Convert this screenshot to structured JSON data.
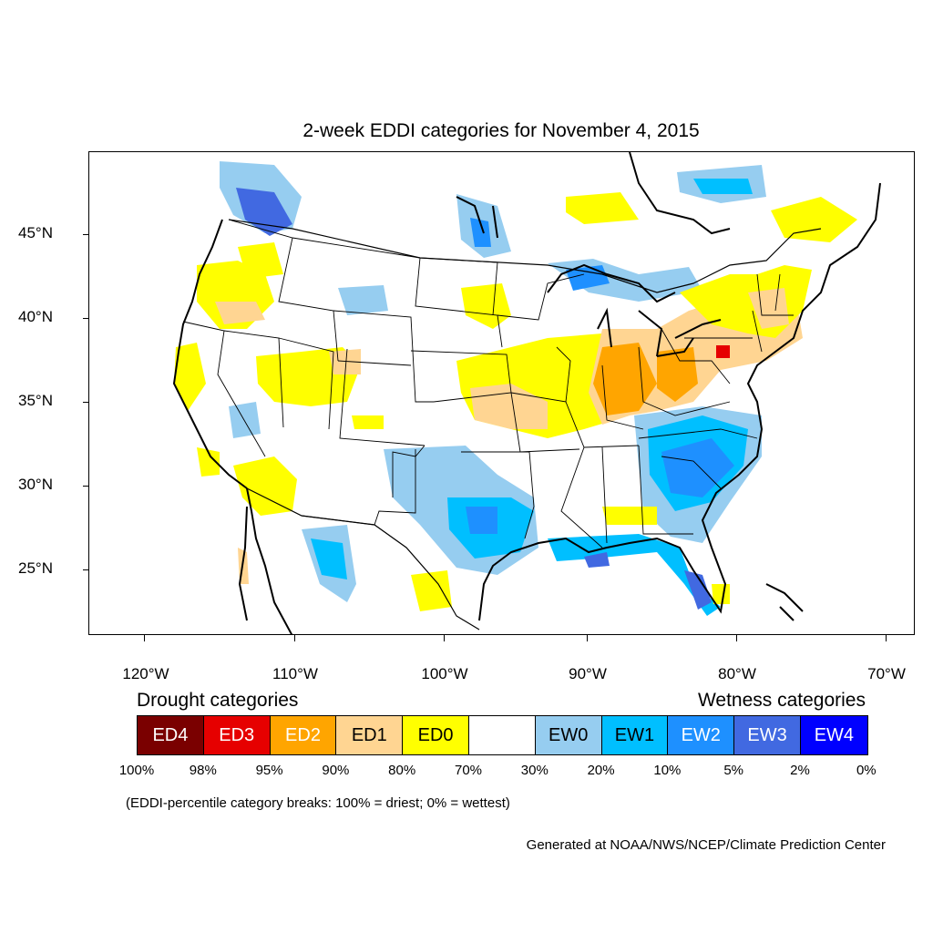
{
  "title": "2-week EDDI categories for November 4, 2015",
  "axes": {
    "lat_labels": [
      "45°N",
      "40°N",
      "35°N",
      "30°N",
      "25°N"
    ],
    "lon_labels": [
      "120°W",
      "110°W",
      "100°W",
      "90°W",
      "80°W",
      "70°W"
    ]
  },
  "legend": {
    "drought_heading": "Drought categories",
    "wetness_heading": "Wetness categories",
    "categories": [
      {
        "label": "ED4",
        "color": "#7a0000",
        "text_color": "#ffffff"
      },
      {
        "label": "ED3",
        "color": "#e60000",
        "text_color": "#ffffff"
      },
      {
        "label": "ED2",
        "color": "#ffa500",
        "text_color": "#ffffff"
      },
      {
        "label": "ED1",
        "color": "#ffd592",
        "text_color": "#000000"
      },
      {
        "label": "ED0",
        "color": "#ffff00",
        "text_color": "#000000"
      },
      {
        "label": "",
        "color": "#ffffff",
        "text_color": "#000000"
      },
      {
        "label": "EW0",
        "color": "#96cdf0",
        "text_color": "#000000"
      },
      {
        "label": "EW1",
        "color": "#00bfff",
        "text_color": "#000000"
      },
      {
        "label": "EW2",
        "color": "#1e90ff",
        "text_color": "#ffffff"
      },
      {
        "label": "EW3",
        "color": "#4169e1",
        "text_color": "#ffffff"
      },
      {
        "label": "EW4",
        "color": "#0000ff",
        "text_color": "#ffffff"
      }
    ],
    "breaks": [
      "100%",
      "98%",
      "95%",
      "90%",
      "80%",
      "70%",
      "30%",
      "20%",
      "10%",
      "5%",
      "2%",
      "0%"
    ]
  },
  "note": "(EDDI-percentile category breaks: 100% = driest; 0% = wettest)",
  "credit": "Generated at NOAA/NWS/NCEP/Climate Prediction Center"
}
